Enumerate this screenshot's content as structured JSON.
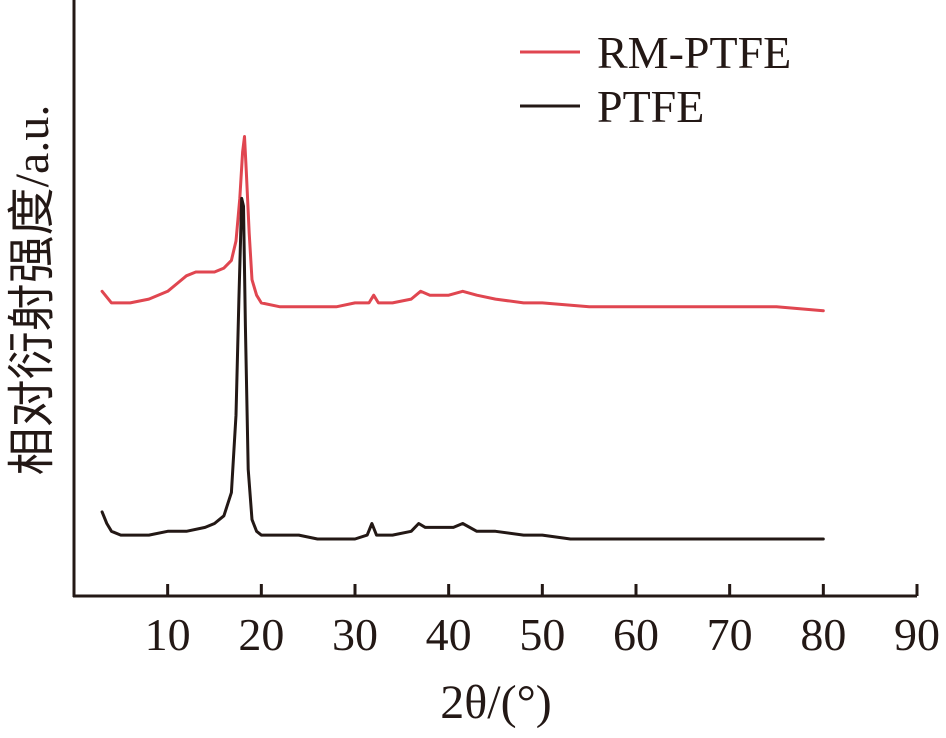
{
  "chart_data": {
    "type": "line",
    "xlabel": "2θ/(°)",
    "ylabel": "相对衍射强度/a.u.",
    "xlim": [
      0,
      90
    ],
    "x_ticks": [
      10,
      20,
      30,
      40,
      50,
      60,
      70,
      80,
      90
    ],
    "x_tick_labels": [
      "10",
      "20",
      "30",
      "40",
      "50",
      "60",
      "70",
      "80",
      "90"
    ],
    "y_ticks_shown": false,
    "legend_position": "top-right",
    "colors": {
      "RM-PTFE": "#e04650",
      "PTFE": "#231815",
      "axis": "#231815"
    },
    "series": [
      {
        "name": "RM-PTFE",
        "color": "#e04650",
        "x": [
          3,
          4,
          6,
          8,
          10,
          11,
          12,
          13,
          14,
          15,
          16,
          16.8,
          17.3,
          17.7,
          18.0,
          18.2,
          18.4,
          18.7,
          19.0,
          19.5,
          20,
          22,
          24,
          26,
          28,
          30,
          31.5,
          32,
          32.5,
          34,
          36,
          37,
          38,
          40,
          41.5,
          43,
          45,
          48,
          50,
          55,
          60,
          65,
          70,
          75,
          80
        ],
        "values": [
          0.64,
          0.61,
          0.61,
          0.62,
          0.64,
          0.66,
          0.68,
          0.69,
          0.69,
          0.69,
          0.7,
          0.72,
          0.77,
          0.88,
          1.0,
          1.04,
          0.95,
          0.79,
          0.67,
          0.63,
          0.61,
          0.6,
          0.6,
          0.6,
          0.6,
          0.61,
          0.61,
          0.63,
          0.61,
          0.61,
          0.62,
          0.64,
          0.63,
          0.63,
          0.64,
          0.63,
          0.62,
          0.61,
          0.61,
          0.6,
          0.6,
          0.6,
          0.6,
          0.6,
          0.59
        ]
      },
      {
        "name": "PTFE",
        "color": "#231815",
        "x": [
          3,
          3.5,
          4,
          5,
          6,
          8,
          10,
          12,
          14,
          15,
          16,
          16.8,
          17.3,
          17.6,
          17.9,
          18.1,
          18.3,
          18.6,
          19.0,
          19.5,
          20,
          22,
          24,
          26,
          28,
          30,
          31.3,
          31.8,
          32.3,
          34,
          36,
          36.8,
          37.5,
          39,
          40.5,
          41.5,
          43,
          45,
          48,
          49,
          50,
          53,
          56,
          60,
          65,
          70,
          73,
          75,
          80
        ],
        "values": [
          0.07,
          0.04,
          0.02,
          0.01,
          0.01,
          0.01,
          0.02,
          0.02,
          0.03,
          0.04,
          0.06,
          0.12,
          0.32,
          0.62,
          0.88,
          0.86,
          0.55,
          0.18,
          0.05,
          0.02,
          0.01,
          0.01,
          0.01,
          0.0,
          0.0,
          0.0,
          0.01,
          0.04,
          0.01,
          0.01,
          0.02,
          0.04,
          0.03,
          0.03,
          0.03,
          0.04,
          0.02,
          0.02,
          0.01,
          0.01,
          0.01,
          0.0,
          0.0,
          0.0,
          0.0,
          0.0,
          0.0,
          0.0,
          0.0
        ]
      }
    ]
  }
}
